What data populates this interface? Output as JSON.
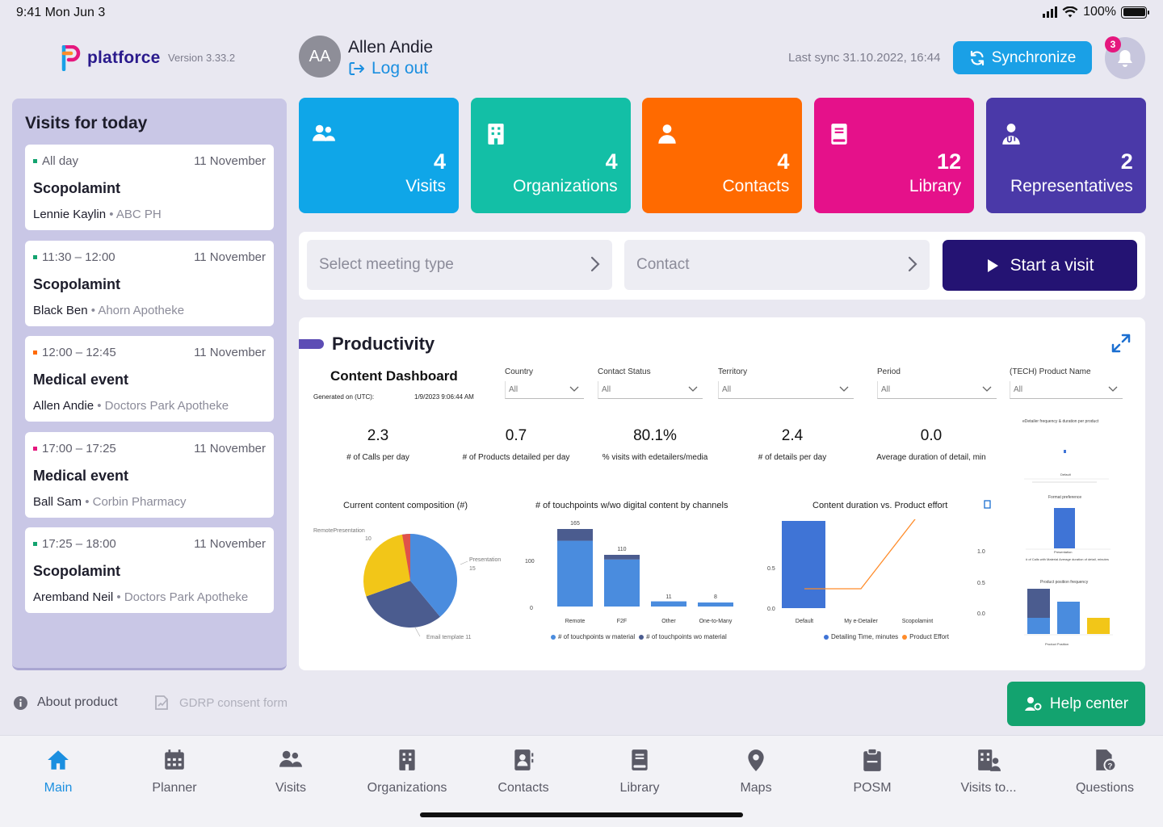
{
  "status_bar": {
    "time": "9:41  Mon Jun 3",
    "battery": "100%"
  },
  "header": {
    "brand": "platforce",
    "version": "Version 3.33.2",
    "avatar_initials": "AA",
    "user_name": "Allen Andie",
    "logout_label": "Log out",
    "last_sync": "Last sync 31.10.2022, 16:44",
    "sync_label": "Synchronize",
    "notification_count": "3"
  },
  "visits_panel": {
    "title": "Visits for today",
    "items": [
      {
        "time": "All day",
        "date": "11 November",
        "title": "Scopolamint",
        "person": "Lennie Kaylin",
        "place": "ABC PH",
        "dot_color": "#13a36f"
      },
      {
        "time": "11:30 – 12:00",
        "date": "11 November",
        "title": "Scopolamint",
        "person": "Black Ben",
        "place": "Ahorn Apotheke",
        "dot_color": "#13a36f"
      },
      {
        "time": "12:00 – 12:45",
        "date": "11 November",
        "title": "Medical event",
        "person": "Allen Andie",
        "place": "Doctors Park Apotheke",
        "dot_color": "#ff6a00"
      },
      {
        "time": "17:00 – 17:25",
        "date": "11 November",
        "title": "Medical event",
        "person": "Ball Sam",
        "place": "Corbin Pharmacy",
        "dot_color": "#e5177e"
      },
      {
        "time": "17:25 – 18:00",
        "date": "11 November",
        "title": "Scopolamint",
        "person": "Aremband Neil",
        "place": "Doctors Park Apotheke",
        "dot_color": "#13a36f"
      }
    ]
  },
  "tiles": [
    {
      "count": "4",
      "label": "Visits",
      "color": "#0fa6e8",
      "icon": "users-icon"
    },
    {
      "count": "4",
      "label": "Organizations",
      "color": "#13bfa6",
      "icon": "building-icon"
    },
    {
      "count": "4",
      "label": "Contacts",
      "color": "#ff6a00",
      "icon": "user-icon"
    },
    {
      "count": "12",
      "label": "Library",
      "color": "#e5118a",
      "icon": "book-icon"
    },
    {
      "count": "2",
      "label": "Representatives",
      "color": "#4a39a8",
      "icon": "doctor-icon"
    }
  ],
  "selectors": {
    "meeting_type_placeholder": "Select meeting type",
    "contact_placeholder": "Contact",
    "start_label": "Start a visit"
  },
  "dashboard": {
    "title": "Productivity",
    "content_title": "Content Dashboard",
    "generated_label": "Generated on (UTC):",
    "generated_value": "1/9/2023 9:06:44 AM",
    "filters": [
      {
        "label": "Country",
        "value": "All"
      },
      {
        "label": "Contact Status",
        "value": "All"
      },
      {
        "label": "Territory",
        "value": "All"
      },
      {
        "label": "Period",
        "value": "All"
      },
      {
        "label": "(TECH) Product Name",
        "value": "All"
      }
    ],
    "kpis": [
      {
        "value": "2.3",
        "label": "# of Calls per day"
      },
      {
        "value": "0.7",
        "label": "# of Products detailed per day"
      },
      {
        "value": "80.1%",
        "label": "% visits with edetailers/media"
      },
      {
        "value": "2.4",
        "label": "# of details per day"
      },
      {
        "value": "0.0",
        "label": "Average duration of detail, min"
      }
    ],
    "side_titles": {
      "top": "eDetailer frequency & duration per product",
      "top_category": "Default",
      "middle": "Format preference",
      "middle_category": "Presentation",
      "middle_legend": "# of Calls with Material  Average duration of detail, minutes",
      "bottom": "Product position frequency",
      "bottom_axis": "Product Position"
    }
  },
  "chart_data": [
    {
      "type": "pie",
      "title": "Current content composition (#)",
      "categories": [
        "Email template",
        "RemotePresentation",
        "Presentation"
      ],
      "values": [
        11,
        10,
        15
      ],
      "colors": [
        "#4b5c8f",
        "#f2c618",
        "#4a8cde"
      ],
      "labels": [
        "Email template 11",
        "RemotePresentation\n10",
        "Presentation\n15"
      ]
    },
    {
      "type": "bar",
      "title": "# of touchpoints w/wo digital content by channels",
      "categories": [
        "Remote",
        "F2F",
        "Other",
        "One-to-Many"
      ],
      "totals": [
        165,
        110,
        11,
        8
      ],
      "series": [
        {
          "name": "# of touchpoints w material",
          "values": [
            140,
            100,
            11,
            8
          ],
          "color": "#4a8cde"
        },
        {
          "name": "# of touchpoints wo material",
          "values": [
            25,
            10,
            0,
            0
          ],
          "color": "#4b5c8f"
        }
      ],
      "y_ticks": [
        "100",
        "0"
      ]
    },
    {
      "type": "bar",
      "title": "Content duration vs. Product effort",
      "categories": [
        "Default",
        "My e-Detailer",
        "Scopolamint"
      ],
      "series": [
        {
          "name": "Detailing Time, minutes",
          "values": [
            0.5,
            0,
            0
          ],
          "color": "#3f74d6"
        },
        {
          "name": "Product Effort",
          "values": [
            0,
            0,
            1.0
          ],
          "color": "#ff8c2a"
        }
      ],
      "y_left_ticks": [
        "0.5",
        "0.0"
      ],
      "y_right_ticks": [
        "1.0",
        "0.5",
        "0.0"
      ]
    }
  ],
  "tabbar": [
    {
      "label": "Main",
      "icon": "home-icon",
      "active": true
    },
    {
      "label": "Planner",
      "icon": "calendar-icon"
    },
    {
      "label": "Visits",
      "icon": "users-icon"
    },
    {
      "label": "Organizations",
      "icon": "building-icon"
    },
    {
      "label": "Contacts",
      "icon": "contact-card-icon"
    },
    {
      "label": "Library",
      "icon": "book-icon"
    },
    {
      "label": "Maps",
      "icon": "map-pin-icon"
    },
    {
      "label": "POSM",
      "icon": "clipboard-icon"
    },
    {
      "label": "Visits to...",
      "icon": "building-user-icon"
    },
    {
      "label": "Questions",
      "icon": "question-file-icon"
    }
  ],
  "footer_links": {
    "about": "About product",
    "gdpr": "GDRP consent form",
    "help": "Help center"
  }
}
